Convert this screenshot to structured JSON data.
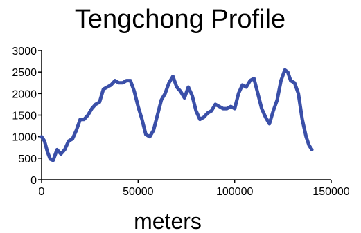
{
  "chart_data": {
    "type": "line",
    "title": "Tengchong Profile",
    "xlabel": "meters",
    "ylabel": "",
    "xlim": [
      0,
      150000
    ],
    "ylim": [
      0,
      3000
    ],
    "x_ticks": [
      0,
      50000,
      100000,
      150000
    ],
    "y_ticks": [
      0,
      500,
      1000,
      1500,
      2000,
      2500,
      3000
    ],
    "grid": false,
    "legend": "none",
    "line_color": "#3a4fa8",
    "series": [
      {
        "x": [
          0,
          1500,
          3000,
          4500,
          6000,
          8000,
          10000,
          12000,
          14000,
          16000,
          18000,
          20000,
          22000,
          24000,
          26000,
          28000,
          30000,
          32000,
          34000,
          36000,
          38000,
          40000,
          42000,
          44000,
          46000,
          48000,
          50000,
          52000,
          54000,
          56000,
          58000,
          60000,
          62000,
          64000,
          66000,
          68000,
          70000,
          72000,
          74000,
          76000,
          78000,
          80000,
          82000,
          84000,
          86000,
          88000,
          90000,
          92000,
          94000,
          96000,
          98000,
          100000,
          102000,
          104000,
          106000,
          108000,
          110000,
          112000,
          114000,
          116000,
          118000,
          120000,
          122000,
          124000,
          126000,
          127500,
          129000,
          131000,
          133000,
          135000,
          137000,
          138500,
          140000
        ],
        "y": [
          1000,
          900,
          650,
          480,
          450,
          700,
          600,
          700,
          900,
          950,
          1150,
          1400,
          1400,
          1500,
          1650,
          1750,
          1800,
          2100,
          2150,
          2200,
          2300,
          2250,
          2250,
          2300,
          2300,
          2050,
          1700,
          1400,
          1050,
          1000,
          1150,
          1500,
          1850,
          2000,
          2250,
          2400,
          2150,
          2050,
          1900,
          2150,
          1950,
          1600,
          1400,
          1450,
          1550,
          1600,
          1750,
          1700,
          1650,
          1650,
          1700,
          1650,
          2000,
          2200,
          2150,
          2300,
          2350,
          2000,
          1650,
          1450,
          1300,
          1600,
          1850,
          2300,
          2550,
          2500,
          2300,
          2250,
          2000,
          1400,
          1000,
          800,
          700
        ]
      }
    ]
  }
}
